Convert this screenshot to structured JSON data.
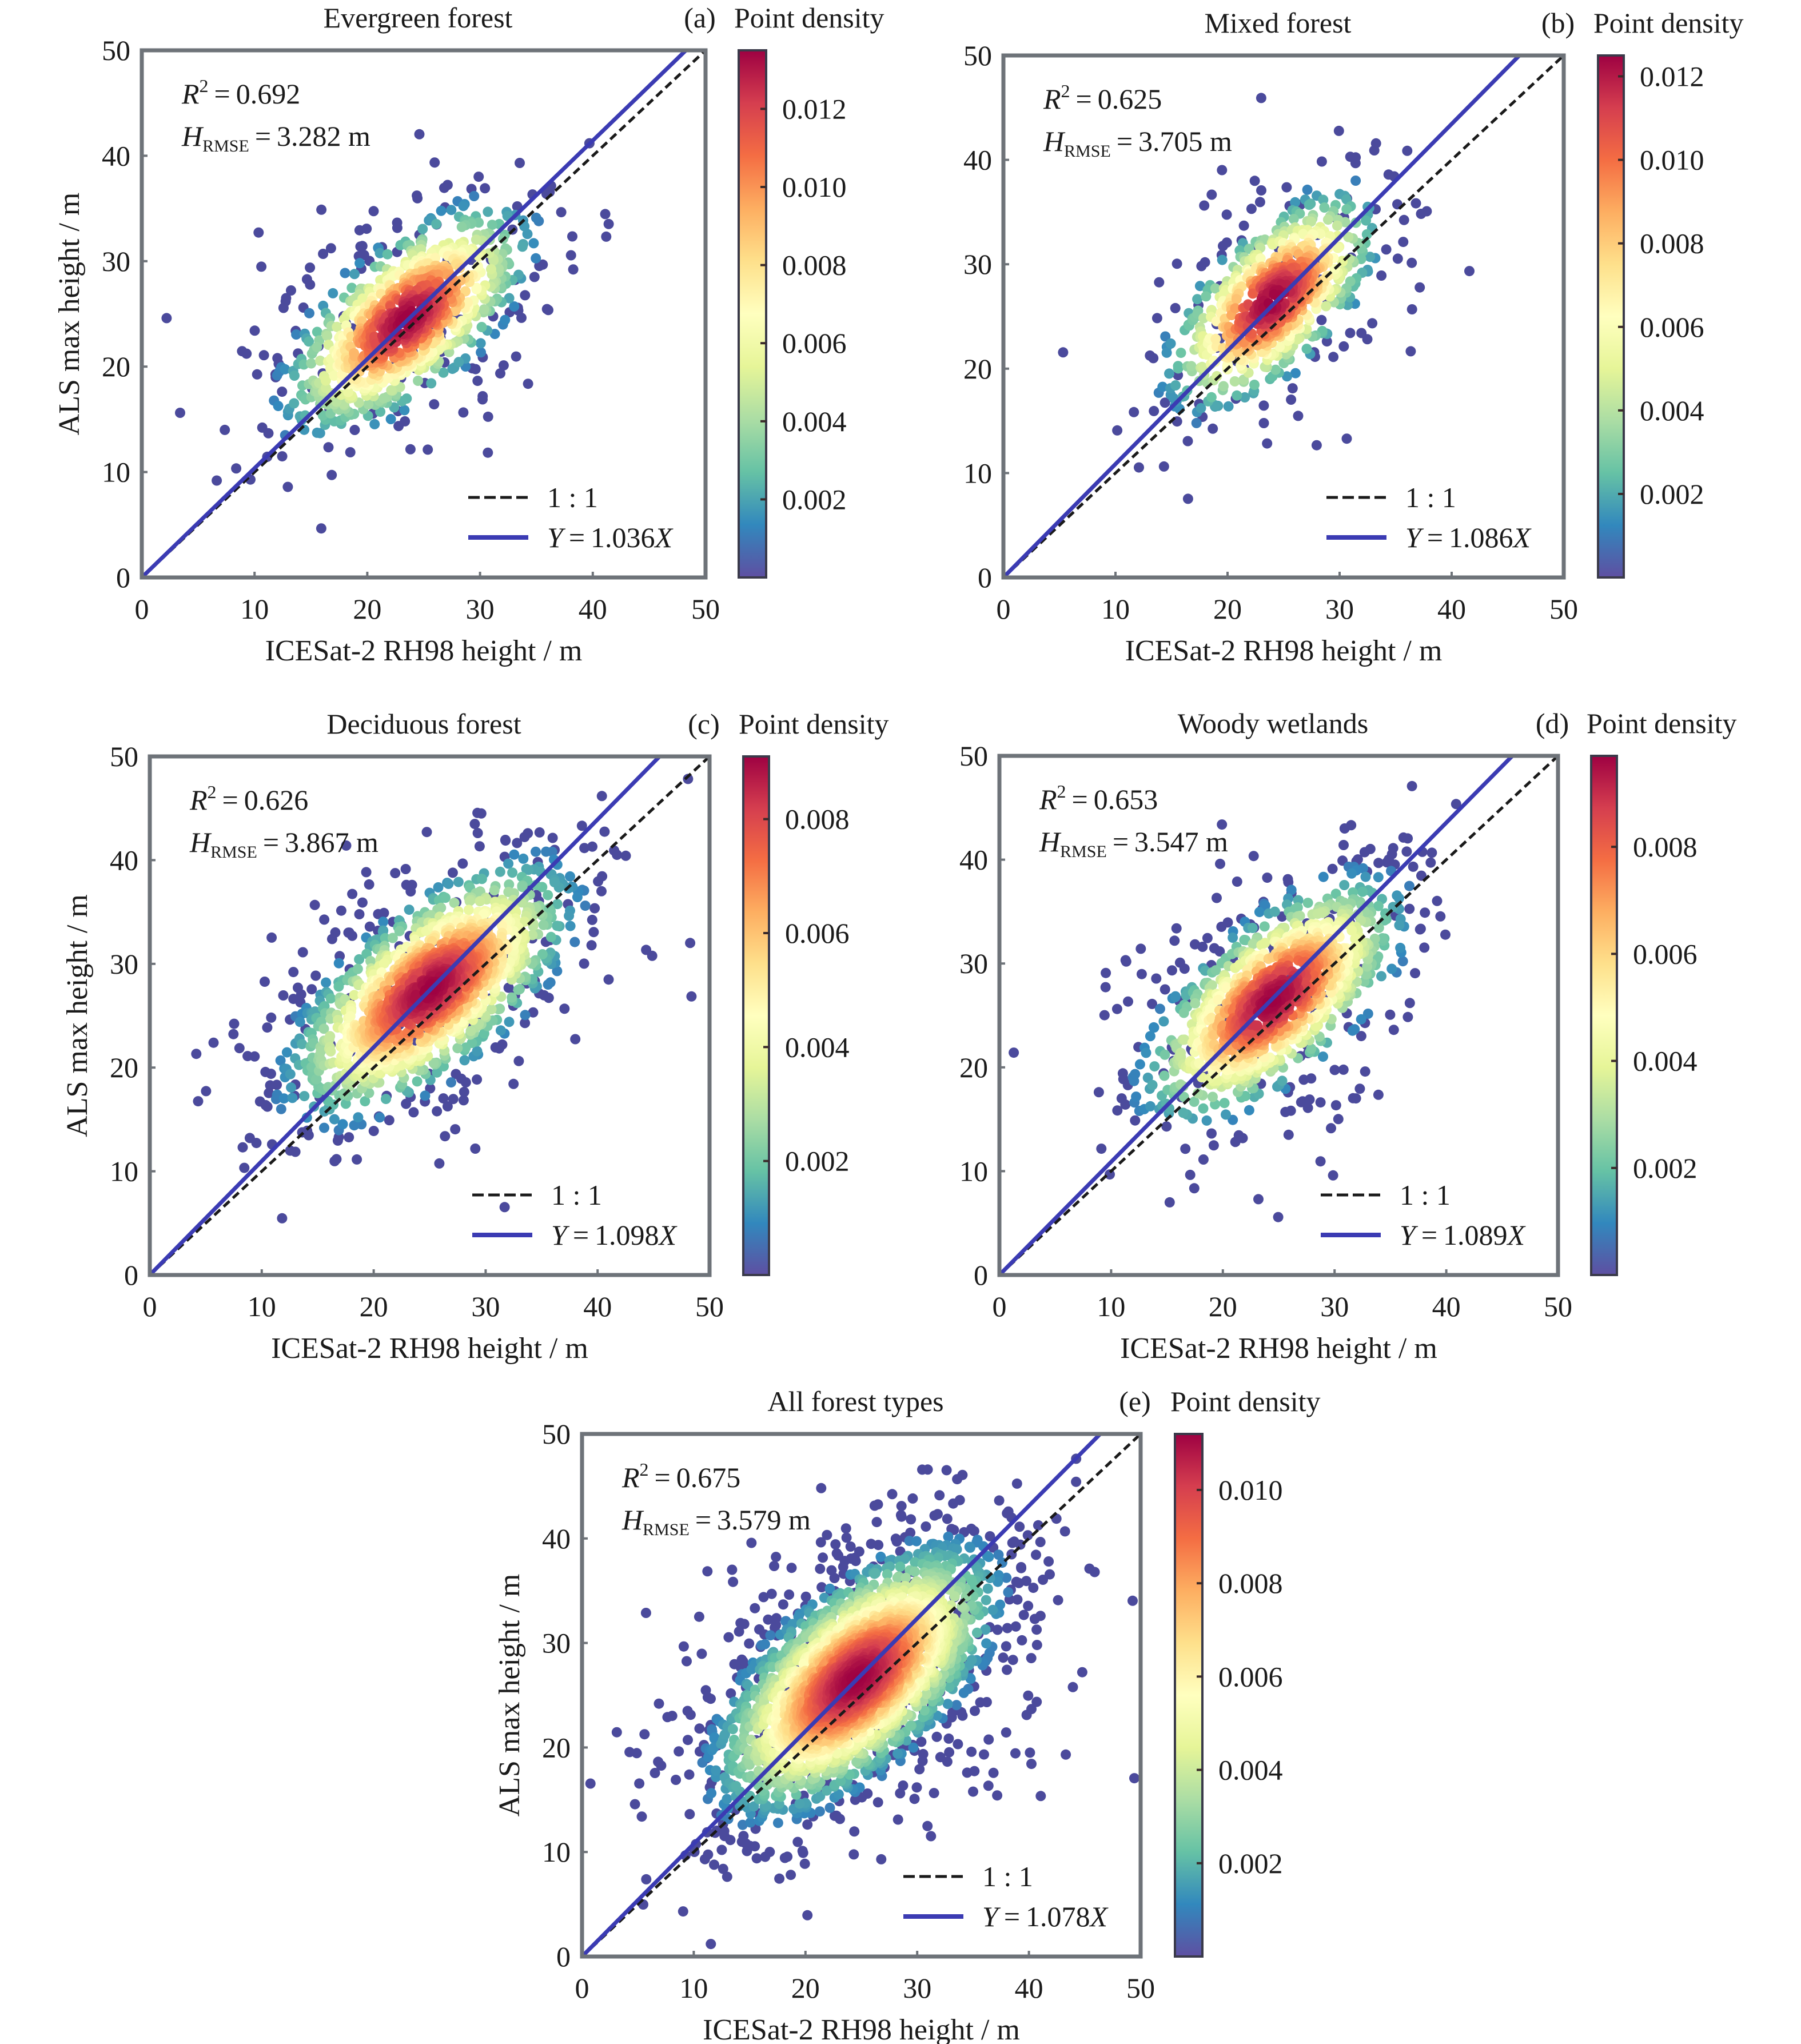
{
  "figure": {
    "xlabel": "ICESat-2 RH98 height / m",
    "ylabel": "ALS max height / m",
    "colorbar_title": "Point density",
    "legend_one_to_one": "1 : 1",
    "colors": {
      "fit_line": "#3b3bb3",
      "one_to_one_line": "#1a1a1a",
      "outlier_point": "#4b4a9c",
      "frame": "#6e7379"
    }
  },
  "chart_data": [
    {
      "type": "scatter",
      "panel": "(a)",
      "title": "Evergreen forest",
      "xlabel": "ICESat-2 RH98 height / m",
      "ylabel": "ALS max height / m",
      "show_ylabel": true,
      "show_xlabel": true,
      "xlim": [
        0,
        50
      ],
      "ylim": [
        0,
        50
      ],
      "xticks": [
        0,
        10,
        20,
        30,
        40,
        50
      ],
      "yticks": [
        0,
        10,
        20,
        30,
        40,
        50
      ],
      "r2_label": "R",
      "r2_value": "0.692",
      "rmse_label": "H",
      "rmse_sub": "RMSE",
      "rmse_value": "3.282 m",
      "fit": {
        "slope": 1.036,
        "label_prefix": "Y",
        "label_value": "1.036",
        "label_suffix": "X"
      },
      "one_to_one": {
        "slope": 1.0
      },
      "colorbar": {
        "min": 0,
        "max": 0.0135,
        "ticks": [
          0.002,
          0.004,
          0.006,
          0.008,
          0.01,
          0.012
        ],
        "tick_labels": [
          "0.002",
          "0.004",
          "0.006",
          "0.008",
          "0.010",
          "0.012"
        ],
        "colormap": "Spectral_r"
      },
      "cloud": {
        "center_x": 23.5,
        "center_y": 24.5,
        "major_sd": 6.5,
        "minor_sd": 3.0,
        "angle_deg": 45,
        "n_points": 900,
        "n_outliers": 110
      }
    },
    {
      "type": "scatter",
      "panel": "(b)",
      "title": "Mixed forest",
      "xlabel": "ICESat-2 RH98 height / m",
      "ylabel": "",
      "show_ylabel": false,
      "show_xlabel": true,
      "xlim": [
        0,
        50
      ],
      "ylim": [
        0,
        50
      ],
      "xticks": [
        0,
        10,
        20,
        30,
        40,
        50
      ],
      "yticks": [
        0,
        10,
        20,
        30,
        40,
        50
      ],
      "r2_label": "R",
      "r2_value": "0.625",
      "rmse_label": "H",
      "rmse_sub": "RMSE",
      "rmse_value": "3.705 m",
      "fit": {
        "slope": 1.086,
        "label_prefix": "Y",
        "label_value": "1.086",
        "label_suffix": "X"
      },
      "one_to_one": {
        "slope": 1.0
      },
      "colorbar": {
        "min": 0,
        "max": 0.0125,
        "ticks": [
          0.002,
          0.004,
          0.006,
          0.008,
          0.01,
          0.012
        ],
        "tick_labels": [
          "0.002",
          "0.004",
          "0.006",
          "0.008",
          "0.010",
          "0.012"
        ],
        "colormap": "Spectral_r"
      },
      "cloud": {
        "center_x": 24.0,
        "center_y": 26.5,
        "major_sd": 6.0,
        "minor_sd": 2.8,
        "angle_deg": 50,
        "n_points": 700,
        "n_outliers": 80
      }
    },
    {
      "type": "scatter",
      "panel": "(c)",
      "title": "Deciduous forest",
      "xlabel": "ICESat-2 RH98 height / m",
      "ylabel": "ALS max height / m",
      "show_ylabel": true,
      "show_xlabel": true,
      "xlim": [
        0,
        50
      ],
      "ylim": [
        0,
        50
      ],
      "xticks": [
        0,
        10,
        20,
        30,
        40,
        50
      ],
      "yticks": [
        0,
        10,
        20,
        30,
        40,
        50
      ],
      "r2_label": "R",
      "r2_value": "0.626",
      "rmse_label": "H",
      "rmse_sub": "RMSE",
      "rmse_value": "3.867 m",
      "fit": {
        "slope": 1.098,
        "label_prefix": "Y",
        "label_value": "1.098",
        "label_suffix": "X"
      },
      "one_to_one": {
        "slope": 1.0
      },
      "colorbar": {
        "min": 0,
        "max": 0.0091,
        "ticks": [
          0.002,
          0.004,
          0.006,
          0.008
        ],
        "tick_labels": [
          "0.002",
          "0.004",
          "0.006",
          "0.008"
        ],
        "colormap": "Spectral_r"
      },
      "cloud": {
        "center_x": 25.0,
        "center_y": 27.5,
        "major_sd": 7.5,
        "minor_sd": 3.4,
        "angle_deg": 44,
        "n_points": 1400,
        "n_outliers": 160
      }
    },
    {
      "type": "scatter",
      "panel": "(d)",
      "title": "Woody wetlands",
      "xlabel": "ICESat-2 RH98 height / m",
      "ylabel": "",
      "show_ylabel": false,
      "show_xlabel": true,
      "xlim": [
        0,
        50
      ],
      "ylim": [
        0,
        50
      ],
      "xticks": [
        0,
        10,
        20,
        30,
        40,
        50
      ],
      "yticks": [
        0,
        10,
        20,
        30,
        40,
        50
      ],
      "r2_label": "R",
      "r2_value": "0.653",
      "rmse_label": "H",
      "rmse_sub": "RMSE",
      "rmse_value": "3.547 m",
      "fit": {
        "slope": 1.089,
        "label_prefix": "Y",
        "label_value": "1.089",
        "label_suffix": "X"
      },
      "one_to_one": {
        "slope": 1.0
      },
      "colorbar": {
        "min": 0,
        "max": 0.0097,
        "ticks": [
          0.002,
          0.004,
          0.006,
          0.008
        ],
        "tick_labels": [
          "0.002",
          "0.004",
          "0.006",
          "0.008"
        ],
        "colormap": "Spectral_r"
      },
      "cloud": {
        "center_x": 24.5,
        "center_y": 26.5,
        "major_sd": 7.0,
        "minor_sd": 3.2,
        "angle_deg": 46,
        "n_points": 1100,
        "n_outliers": 140
      }
    },
    {
      "type": "scatter",
      "panel": "(e)",
      "title": "All forest types",
      "xlabel": "ICESat-2 RH98 height / m",
      "ylabel": "ALS max height / m",
      "show_ylabel": true,
      "show_xlabel": true,
      "xlim": [
        0,
        50
      ],
      "ylim": [
        0,
        50
      ],
      "xticks": [
        0,
        10,
        20,
        30,
        40,
        50
      ],
      "yticks": [
        0,
        10,
        20,
        30,
        40,
        50
      ],
      "r2_label": "R",
      "r2_value": "0.675",
      "rmse_label": "H",
      "rmse_sub": "RMSE",
      "rmse_value": "3.579 m",
      "fit": {
        "slope": 1.078,
        "label_prefix": "Y",
        "label_value": "1.078",
        "label_suffix": "X"
      },
      "one_to_one": {
        "slope": 1.0
      },
      "colorbar": {
        "min": 0,
        "max": 0.0112,
        "ticks": [
          0.002,
          0.004,
          0.006,
          0.008,
          0.01
        ],
        "tick_labels": [
          "0.002",
          "0.004",
          "0.006",
          "0.008",
          "0.010"
        ],
        "colormap": "Spectral_r"
      },
      "cloud": {
        "center_x": 24.5,
        "center_y": 26.5,
        "major_sd": 7.5,
        "minor_sd": 3.6,
        "angle_deg": 46,
        "n_points": 2600,
        "n_outliers": 320
      }
    }
  ]
}
